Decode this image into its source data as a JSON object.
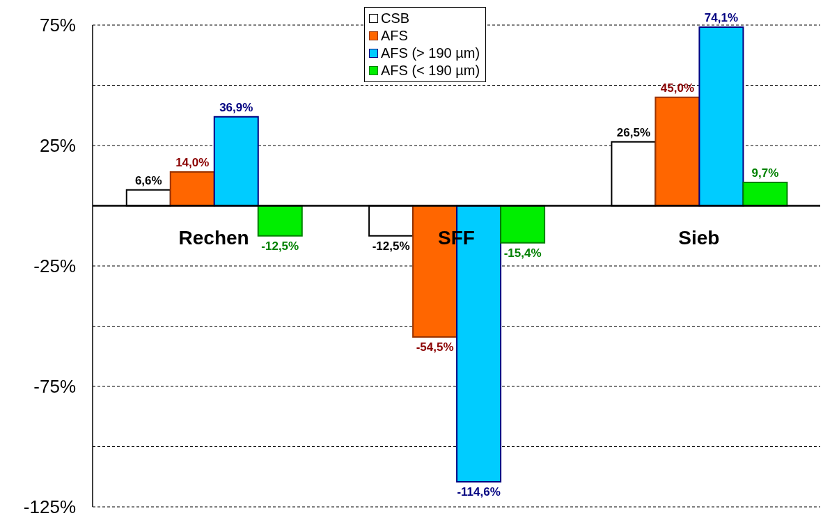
{
  "chart_data": {
    "type": "bar",
    "categories": [
      "Rechen",
      "SFF",
      "Sieb"
    ],
    "series": [
      {
        "name": "CSB",
        "color": "#ffffff",
        "values": [
          6.6,
          -12.5,
          26.5
        ],
        "value_labels": [
          "6,6%",
          "-12,5%",
          "26,5%"
        ]
      },
      {
        "name": "AFS",
        "color": "#ff6600",
        "values": [
          14.0,
          -54.5,
          45.0
        ],
        "value_labels": [
          "14,0%",
          "-54,5%",
          "45,0%"
        ]
      },
      {
        "name": "AFS (> 190 µm)",
        "color": "#00ccff",
        "values": [
          36.9,
          -114.6,
          74.1
        ],
        "value_labels": [
          "36,9%",
          "-114,6%",
          "74,1%"
        ]
      },
      {
        "name": "AFS (< 190 µm)",
        "color": "#00ee00",
        "values": [
          -12.5,
          -15.4,
          9.7
        ],
        "value_labels": [
          "-12,5%",
          "-15,4%",
          "9,7%"
        ]
      }
    ],
    "ylim": [
      -125,
      75
    ],
    "yticks": [
      {
        "value": 75,
        "label": "75%"
      },
      {
        "value": 50,
        "label": null
      },
      {
        "value": 25,
        "label": "25%"
      },
      {
        "value": 0,
        "label": null
      },
      {
        "value": -25,
        "label": "-25%"
      },
      {
        "value": -50,
        "label": null
      },
      {
        "value": -75,
        "label": "-75%"
      },
      {
        "value": -100,
        "label": null
      },
      {
        "value": -125,
        "label": "-125%"
      }
    ],
    "grid": "y",
    "legend": "top"
  }
}
